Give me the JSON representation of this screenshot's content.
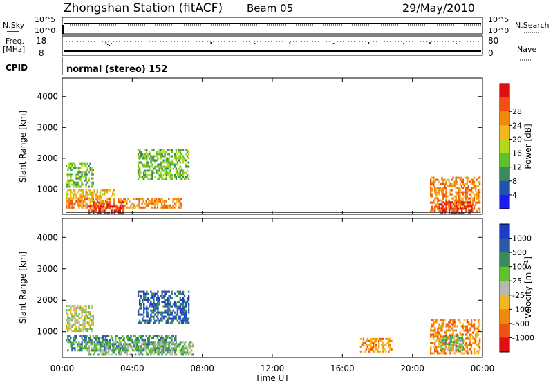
{
  "header": {
    "station": "Zhongshan Station (fitACF)",
    "beam": "Beam 05",
    "date": "29/May/2010"
  },
  "status_panels": {
    "nsky_label": "N.Sky",
    "nsearch_label": "N.Search",
    "freq_label_1": "Freq.",
    "freq_label_2": "[MHz]",
    "cpid_label": "CPID",
    "nave_label": "Nave",
    "cpid_text": "normal (stereo) 152",
    "nsky_ticks": [
      "10^5",
      "10^0"
    ],
    "nsearch_ticks": [
      "10^5",
      "10^0"
    ],
    "freq_ticks": [
      "18",
      "8"
    ],
    "nave_ticks": [
      "80",
      "0"
    ]
  },
  "chart_data": [
    {
      "type": "heatmap",
      "name": "Power",
      "ylabel": "Slant Range [km]",
      "xlabel": "Time UT",
      "ylim": [
        180,
        4600
      ],
      "xlim": [
        0,
        24
      ],
      "y_ticks": [
        "1000",
        "2000",
        "3000",
        "4000"
      ],
      "y_tick_values": [
        1000,
        2000,
        3000,
        4000
      ],
      "colorbar": {
        "label": "Power [dB]",
        "tick_labels": [
          "4",
          "8",
          "12",
          "16",
          "20",
          "24",
          "28"
        ],
        "colors": [
          "#1c1cf0",
          "#2052b4",
          "#3a8a5c",
          "#5fc22c",
          "#b4d81c",
          "#f0b81c",
          "#f08a0c",
          "#f05010",
          "#e01010"
        ]
      },
      "regions": [
        {
          "t0": 0.2,
          "t1": 1.8,
          "r0": 1050,
          "r1": 1850,
          "level": 3
        },
        {
          "t0": 0.2,
          "t1": 3.0,
          "r0": 700,
          "r1": 1000,
          "level": 5
        },
        {
          "t0": 0.2,
          "t1": 6.8,
          "r0": 400,
          "r1": 700,
          "level": 6
        },
        {
          "t0": 1.5,
          "t1": 3.5,
          "r0": 200,
          "r1": 600,
          "level": 8
        },
        {
          "t0": 4.3,
          "t1": 7.2,
          "r0": 1300,
          "r1": 2300,
          "level": 3
        },
        {
          "t0": 21.0,
          "t1": 23.8,
          "r0": 300,
          "r1": 1400,
          "level": 6
        },
        {
          "t0": 21.5,
          "t1": 23.4,
          "r0": 200,
          "r1": 600,
          "level": 8
        }
      ]
    },
    {
      "type": "heatmap",
      "name": "Velocity",
      "ylabel": "Slant Range [km]",
      "xlabel": "Time UT",
      "ylim": [
        180,
        4600
      ],
      "xlim": [
        0,
        24
      ],
      "y_ticks": [
        "1000",
        "2000",
        "3000",
        "4000"
      ],
      "y_tick_values": [
        1000,
        2000,
        3000,
        4000
      ],
      "colorbar": {
        "label": "Velocity [m s^-1]",
        "tick_labels": [
          "1000",
          "500",
          "100",
          "25",
          "-25",
          "-100",
          "-500",
          "-1000"
        ],
        "colors": [
          "#1c3cc8",
          "#2b5aa6",
          "#3a8a5c",
          "#5fc22c",
          "#b8b8b0",
          "#f0b81c",
          "#f08a0c",
          "#f05010",
          "#e01010"
        ]
      },
      "regions": [
        {
          "t0": 0.2,
          "t1": 1.8,
          "r0": 1050,
          "r1": 1850,
          "level": 4
        },
        {
          "t0": 0.2,
          "t1": 6.5,
          "r0": 400,
          "r1": 900,
          "level": 2
        },
        {
          "t0": 1.5,
          "t1": 7.5,
          "r0": 300,
          "r1": 700,
          "level": 3
        },
        {
          "t0": 4.3,
          "t1": 7.2,
          "r0": 1300,
          "r1": 2300,
          "level": 1
        },
        {
          "t0": 17.0,
          "t1": 18.8,
          "r0": 400,
          "r1": 800,
          "level": 6
        },
        {
          "t0": 21.0,
          "t1": 23.8,
          "r0": 300,
          "r1": 1400,
          "level": 6
        },
        {
          "t0": 21.6,
          "t1": 22.8,
          "r0": 400,
          "r1": 900,
          "level": 3
        }
      ]
    }
  ],
  "x_ticks": [
    "00:00",
    "04:00",
    "08:00",
    "12:00",
    "16:00",
    "20:00",
    "00:00"
  ],
  "x_tick_values": [
    0,
    4,
    8,
    12,
    16,
    20,
    24
  ],
  "x_axis_label": "Time UT"
}
